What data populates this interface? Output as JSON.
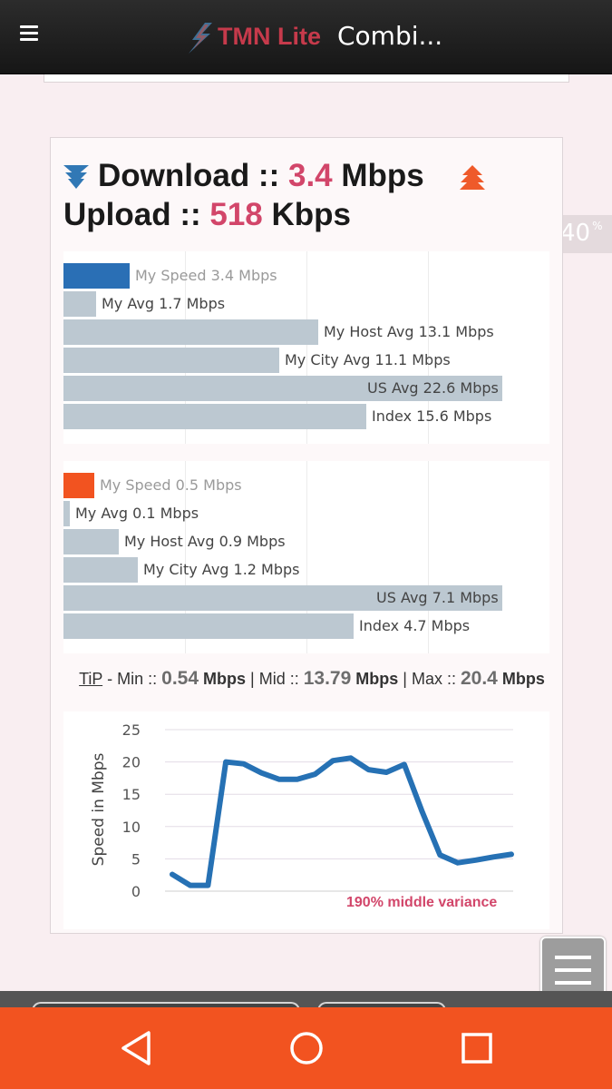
{
  "app": {
    "brand_part1": "TMN Lite",
    "brand_part2": "Combi..."
  },
  "summary": {
    "download_label": "Download ::",
    "download_value": "3.4",
    "download_unit": "Mbps",
    "upload_label": "Upload ::",
    "upload_value": "518",
    "upload_unit": "Kbps"
  },
  "download_bars": [
    {
      "label": "My Speed 3.4 Mbps",
      "value": 3.4,
      "highlight": true
    },
    {
      "label": "My Avg 1.7 Mbps",
      "value": 1.7
    },
    {
      "label": "My Host Avg 13.1 Mbps",
      "value": 13.1
    },
    {
      "label": "My City Avg 11.1 Mbps",
      "value": 11.1
    },
    {
      "label": "US Avg 22.6 Mbps",
      "value": 22.6
    },
    {
      "label": "Index 15.6 Mbps",
      "value": 15.6
    }
  ],
  "upload_bars": [
    {
      "label": "My Speed 0.5 Mbps",
      "value": 0.5,
      "highlight": true
    },
    {
      "label": "My Avg 0.1 Mbps",
      "value": 0.1
    },
    {
      "label": "My Host Avg 0.9 Mbps",
      "value": 0.9
    },
    {
      "label": "My City Avg 1.2 Mbps",
      "value": 1.2
    },
    {
      "label": "US Avg 7.1 Mbps",
      "value": 7.1
    },
    {
      "label": "Index 4.7 Mbps",
      "value": 4.7
    }
  ],
  "tip": {
    "tip_label": "TiP",
    "min_label": " - Min :: ",
    "min_value": "0.54",
    "unit": "Mbps",
    "mid_label": " | Mid :: ",
    "mid_value": "13.79",
    "max_label": " | Max :: ",
    "max_value": "20.4"
  },
  "chart_data": {
    "type": "line",
    "title": "",
    "xlabel": "",
    "ylabel": "Speed in Mbps",
    "ylim": [
      0,
      25
    ],
    "yticks": [
      0,
      5,
      10,
      15,
      20,
      25
    ],
    "grid": true,
    "series": [
      {
        "values": [
          2.6,
          0.9,
          0.9,
          20.0,
          19.7,
          18.3,
          17.3,
          17.3,
          18.1,
          20.2,
          20.6,
          18.8,
          18.4,
          19.6,
          12.3,
          5.6,
          4.4,
          4.8,
          5.3,
          5.7
        ]
      }
    ],
    "annotation": "190% middle variance",
    "colors": {
      "line": "#2671b4"
    }
  },
  "widgets": {
    "zoom_value": "40",
    "zoom_unit": "%"
  },
  "colors": {
    "accent_pink": "#d2466a",
    "download_bar": "#2a6fb5",
    "upload_bar": "#f25320",
    "comparison_bar": "#bcc8d1",
    "nav_bar": "#f25320"
  }
}
